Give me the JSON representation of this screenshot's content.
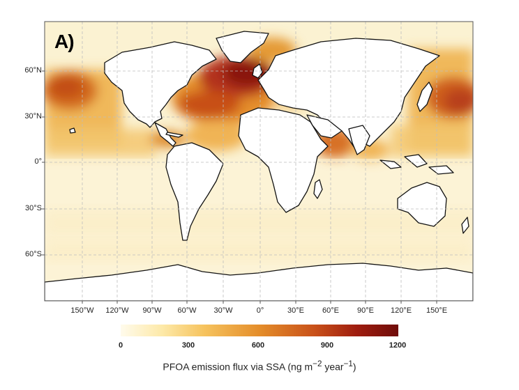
{
  "panel_label": "A)",
  "lat_labels": [
    "60°N",
    "30°N",
    "0°",
    "30°S",
    "60°S"
  ],
  "lon_labels": [
    "150°W",
    "120°W",
    "90°W",
    "60°W",
    "30°W",
    "0°",
    "30°E",
    "60°E",
    "90°E",
    "120°E",
    "150°E"
  ],
  "colorbar": {
    "ticks": [
      "0",
      "300",
      "600",
      "900",
      "1200"
    ],
    "title_prefix": "PFOA emission flux via SSA (ng m",
    "title_sup1": "−2",
    "title_mid": " year",
    "title_sup2": "−1",
    "title_suffix": ")",
    "colors": [
      "#fffbec",
      "#fde9a8",
      "#f6c35e",
      "#e48d2a",
      "#c85019",
      "#9f1d0f",
      "#6f0c0a"
    ]
  }
}
